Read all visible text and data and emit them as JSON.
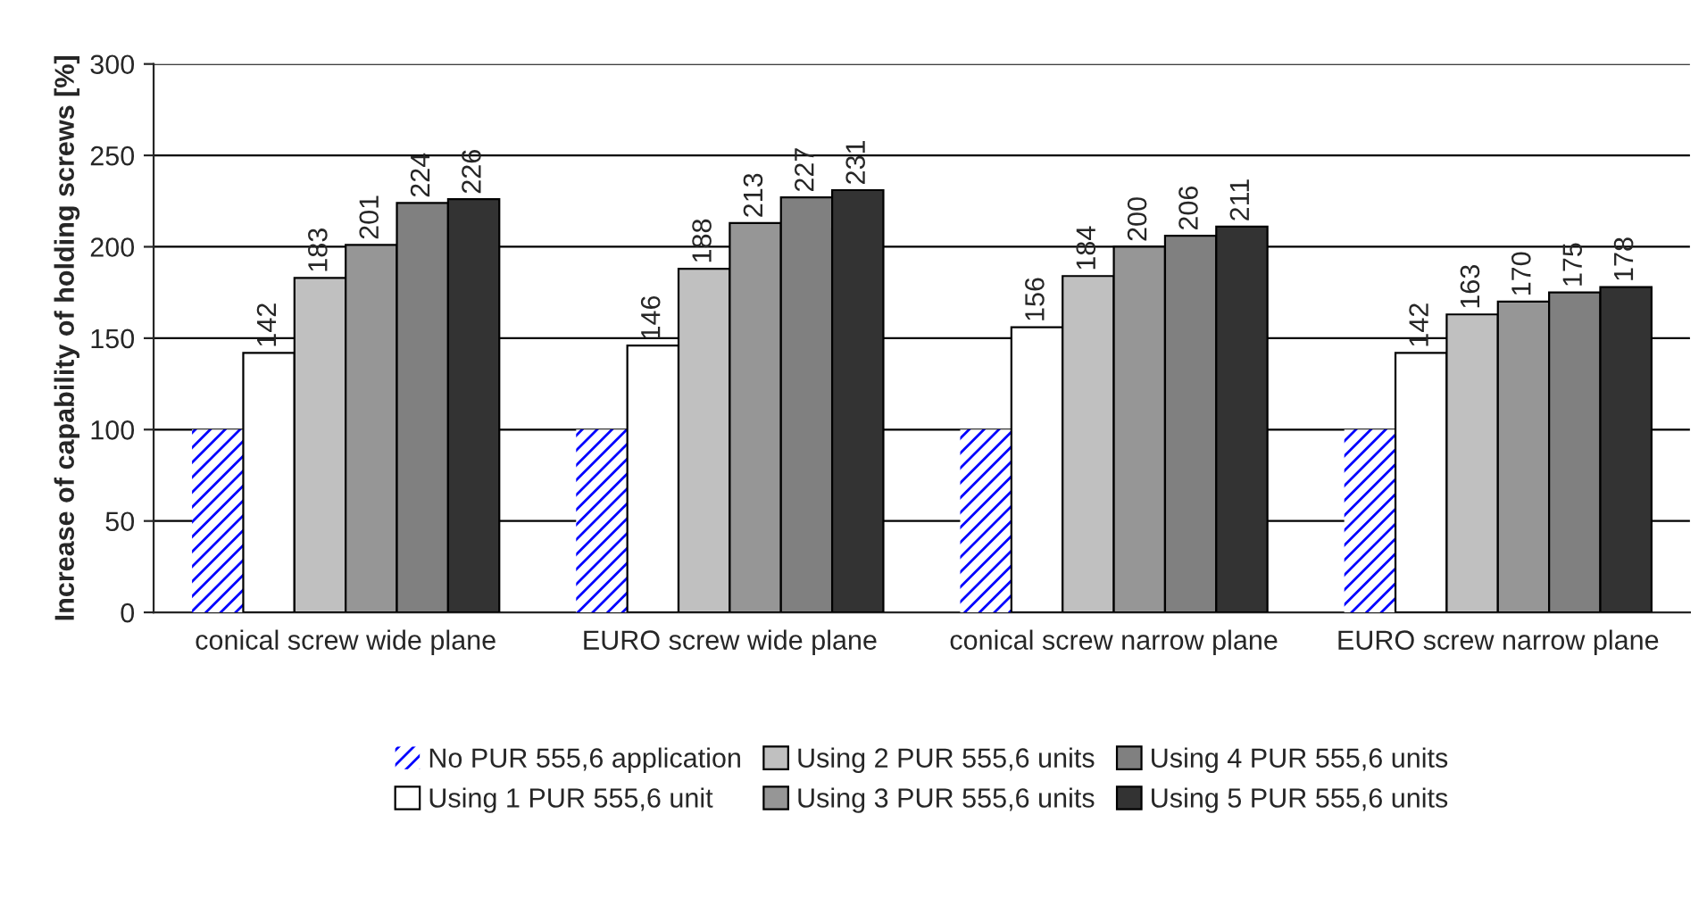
{
  "chart_data": {
    "type": "bar",
    "ylabel": "Increase of capability of holding screws [%]",
    "categories": [
      "conical screw wide plane",
      "EURO screw wide plane",
      "conical screw narrow plane",
      "EURO screw narrow plane"
    ],
    "series": [
      {
        "name": "No PUR 555,6 application",
        "color": "#0000ff",
        "values": [
          100,
          100,
          100,
          100
        ],
        "value_labels": [
          null,
          null,
          null,
          null
        ]
      },
      {
        "name": "Using 1 PUR 555,6 unit",
        "color": "#ffffff",
        "values": [
          142,
          146,
          156,
          142
        ]
      },
      {
        "name": "Using 2 PUR 555,6 units",
        "color": "#c0c0c0",
        "values": [
          183,
          188,
          184,
          163
        ]
      },
      {
        "name": "Using 3 PUR 555,6 units",
        "color": "#969696",
        "values": [
          201,
          213,
          200,
          170
        ]
      },
      {
        "name": "Using 4 PUR 555,6 units",
        "color": "#808080",
        "values": [
          224,
          227,
          206,
          175
        ]
      },
      {
        "name": "Using 5 PUR 555,6 units",
        "color": "#333333",
        "values": [
          226,
          231,
          211,
          178
        ]
      }
    ],
    "ylim": [
      0,
      300
    ],
    "yticks": [
      0,
      50,
      100,
      150,
      200,
      250,
      300
    ],
    "grid": "y",
    "legend": "bottom",
    "data_labels": true
  }
}
